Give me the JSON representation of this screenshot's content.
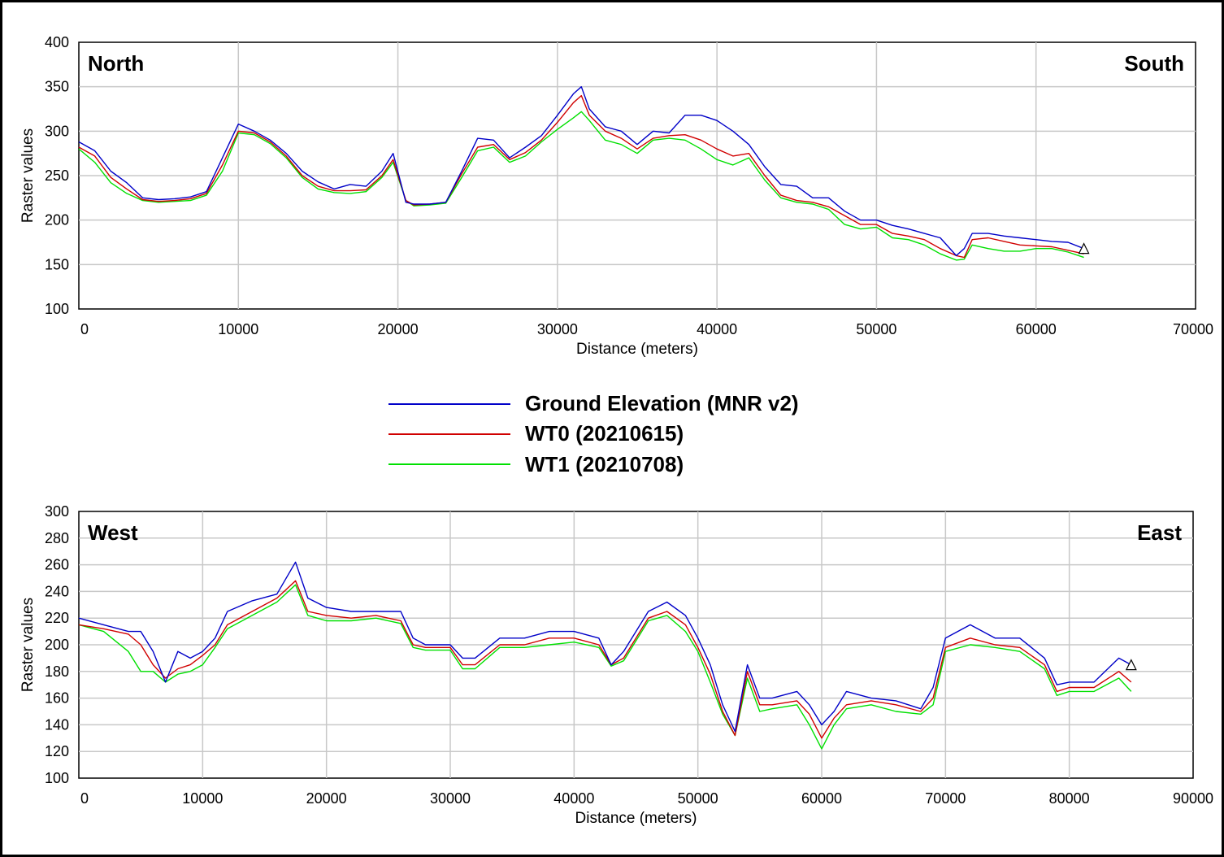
{
  "legend": [
    {
      "name": "Ground Elevation (MNR v2)",
      "color": "#0000c8"
    },
    {
      "name": "WT0 (20210615)",
      "color": "#d00000"
    },
    {
      "name": "WT1 (20210708)",
      "color": "#00e000"
    }
  ],
  "chart_data": [
    {
      "type": "line",
      "corner_left": "North",
      "corner_right": "South",
      "xlabel": "Distance (meters)",
      "ylabel": "Raster values",
      "xlim": [
        0,
        70000
      ],
      "ylim": [
        100,
        400
      ],
      "xticks": [
        0,
        10000,
        20000,
        30000,
        40000,
        50000,
        60000,
        70000
      ],
      "yticks": [
        100,
        150,
        200,
        250,
        300,
        350,
        400
      ],
      "grid": true,
      "x": [
        0,
        1000,
        2000,
        3000,
        4000,
        5000,
        6000,
        7000,
        8000,
        9000,
        10000,
        11000,
        12000,
        13000,
        14000,
        15000,
        16000,
        17000,
        18000,
        19000,
        19700,
        20500,
        21000,
        22000,
        23000,
        24000,
        25000,
        26000,
        27000,
        28000,
        29000,
        30000,
        31000,
        31500,
        32000,
        33000,
        34000,
        35000,
        36000,
        37000,
        38000,
        39000,
        40000,
        41000,
        42000,
        43000,
        44000,
        45000,
        46000,
        47000,
        48000,
        49000,
        50000,
        51000,
        52000,
        53000,
        54000,
        55000,
        55500,
        56000,
        57000,
        58000,
        59000,
        60000,
        61000,
        62000,
        63000
      ],
      "series": [
        {
          "name": "Ground Elevation (MNR v2)",
          "values": [
            288,
            278,
            255,
            242,
            225,
            223,
            224,
            226,
            232,
            270,
            308,
            300,
            290,
            275,
            255,
            243,
            235,
            240,
            238,
            255,
            275,
            220,
            218,
            218,
            220,
            255,
            292,
            290,
            270,
            282,
            295,
            318,
            342,
            350,
            325,
            305,
            300,
            285,
            300,
            298,
            318,
            318,
            312,
            300,
            285,
            260,
            240,
            238,
            225,
            225,
            210,
            200,
            200,
            194,
            190,
            185,
            180,
            160,
            168,
            185,
            185,
            182,
            180,
            178,
            176,
            175,
            168
          ]
        },
        {
          "name": "WT0 (20210615)",
          "values": [
            282,
            272,
            248,
            235,
            223,
            221,
            222,
            224,
            230,
            262,
            300,
            298,
            288,
            272,
            250,
            238,
            233,
            233,
            234,
            250,
            268,
            222,
            217,
            218,
            220,
            252,
            282,
            285,
            268,
            276,
            290,
            310,
            332,
            340,
            318,
            300,
            292,
            280,
            292,
            295,
            296,
            290,
            280,
            272,
            275,
            250,
            228,
            222,
            220,
            215,
            205,
            195,
            195,
            185,
            182,
            178,
            168,
            160,
            158,
            178,
            180,
            176,
            172,
            171,
            170,
            166,
            162
          ]
        },
        {
          "name": "WT1 (20210708)",
          "values": [
            280,
            265,
            242,
            230,
            222,
            220,
            221,
            222,
            228,
            255,
            298,
            296,
            286,
            270,
            248,
            235,
            231,
            230,
            232,
            248,
            265,
            222,
            216,
            217,
            219,
            248,
            278,
            282,
            265,
            272,
            288,
            302,
            315,
            322,
            312,
            290,
            285,
            275,
            290,
            292,
            290,
            280,
            268,
            262,
            270,
            245,
            225,
            220,
            218,
            212,
            195,
            190,
            192,
            180,
            178,
            172,
            162,
            155,
            156,
            172,
            168,
            165,
            165,
            168,
            168,
            164,
            158
          ]
        }
      ]
    },
    {
      "type": "line",
      "corner_left": "West",
      "corner_right": "East",
      "xlabel": "Distance (meters)",
      "ylabel": "Raster values",
      "xlim": [
        0,
        90000
      ],
      "ylim": [
        100,
        300
      ],
      "xticks": [
        0,
        10000,
        20000,
        30000,
        40000,
        50000,
        60000,
        70000,
        80000,
        90000
      ],
      "yticks": [
        100,
        120,
        140,
        160,
        180,
        200,
        220,
        240,
        260,
        280,
        300
      ],
      "grid": true,
      "x": [
        0,
        2000,
        4000,
        5000,
        6000,
        7000,
        8000,
        9000,
        10000,
        11000,
        12000,
        14000,
        16000,
        17500,
        18500,
        20000,
        22000,
        24000,
        26000,
        27000,
        28000,
        30000,
        31000,
        32000,
        34000,
        36000,
        38000,
        40000,
        42000,
        43000,
        44000,
        46000,
        47500,
        49000,
        50000,
        51000,
        52000,
        53000,
        54000,
        55000,
        56000,
        58000,
        59000,
        60000,
        61000,
        62000,
        64000,
        66000,
        68000,
        69000,
        70000,
        72000,
        74000,
        76000,
        78000,
        79000,
        80000,
        82000,
        84000,
        85000
      ],
      "series": [
        {
          "name": "Ground Elevation (MNR v2)",
          "values": [
            220,
            215,
            210,
            210,
            195,
            172,
            195,
            190,
            195,
            205,
            225,
            233,
            238,
            262,
            235,
            228,
            225,
            225,
            225,
            205,
            200,
            200,
            190,
            190,
            205,
            205,
            210,
            210,
            205,
            185,
            195,
            225,
            232,
            222,
            205,
            185,
            155,
            135,
            185,
            160,
            160,
            165,
            155,
            140,
            150,
            165,
            160,
            158,
            152,
            168,
            205,
            215,
            205,
            205,
            190,
            170,
            172,
            172,
            190,
            185
          ]
        },
        {
          "name": "WT0 (20210615)",
          "values": [
            215,
            212,
            208,
            200,
            185,
            175,
            182,
            185,
            192,
            200,
            215,
            225,
            235,
            248,
            225,
            222,
            220,
            222,
            218,
            200,
            198,
            198,
            185,
            185,
            200,
            200,
            205,
            205,
            200,
            185,
            190,
            220,
            225,
            215,
            198,
            178,
            150,
            132,
            180,
            155,
            155,
            158,
            148,
            130,
            145,
            155,
            158,
            155,
            150,
            160,
            198,
            205,
            200,
            198,
            185,
            165,
            168,
            168,
            180,
            172
          ]
        },
        {
          "name": "WT1 (20210708)",
          "values": [
            215,
            210,
            195,
            180,
            180,
            172,
            178,
            180,
            185,
            198,
            212,
            222,
            232,
            245,
            222,
            218,
            218,
            220,
            216,
            198,
            196,
            196,
            182,
            182,
            198,
            198,
            200,
            202,
            198,
            184,
            188,
            218,
            222,
            210,
            195,
            172,
            148,
            132,
            175,
            150,
            152,
            155,
            140,
            122,
            140,
            152,
            155,
            150,
            148,
            155,
            195,
            200,
            198,
            195,
            182,
            162,
            165,
            165,
            175,
            165
          ]
        }
      ]
    }
  ]
}
